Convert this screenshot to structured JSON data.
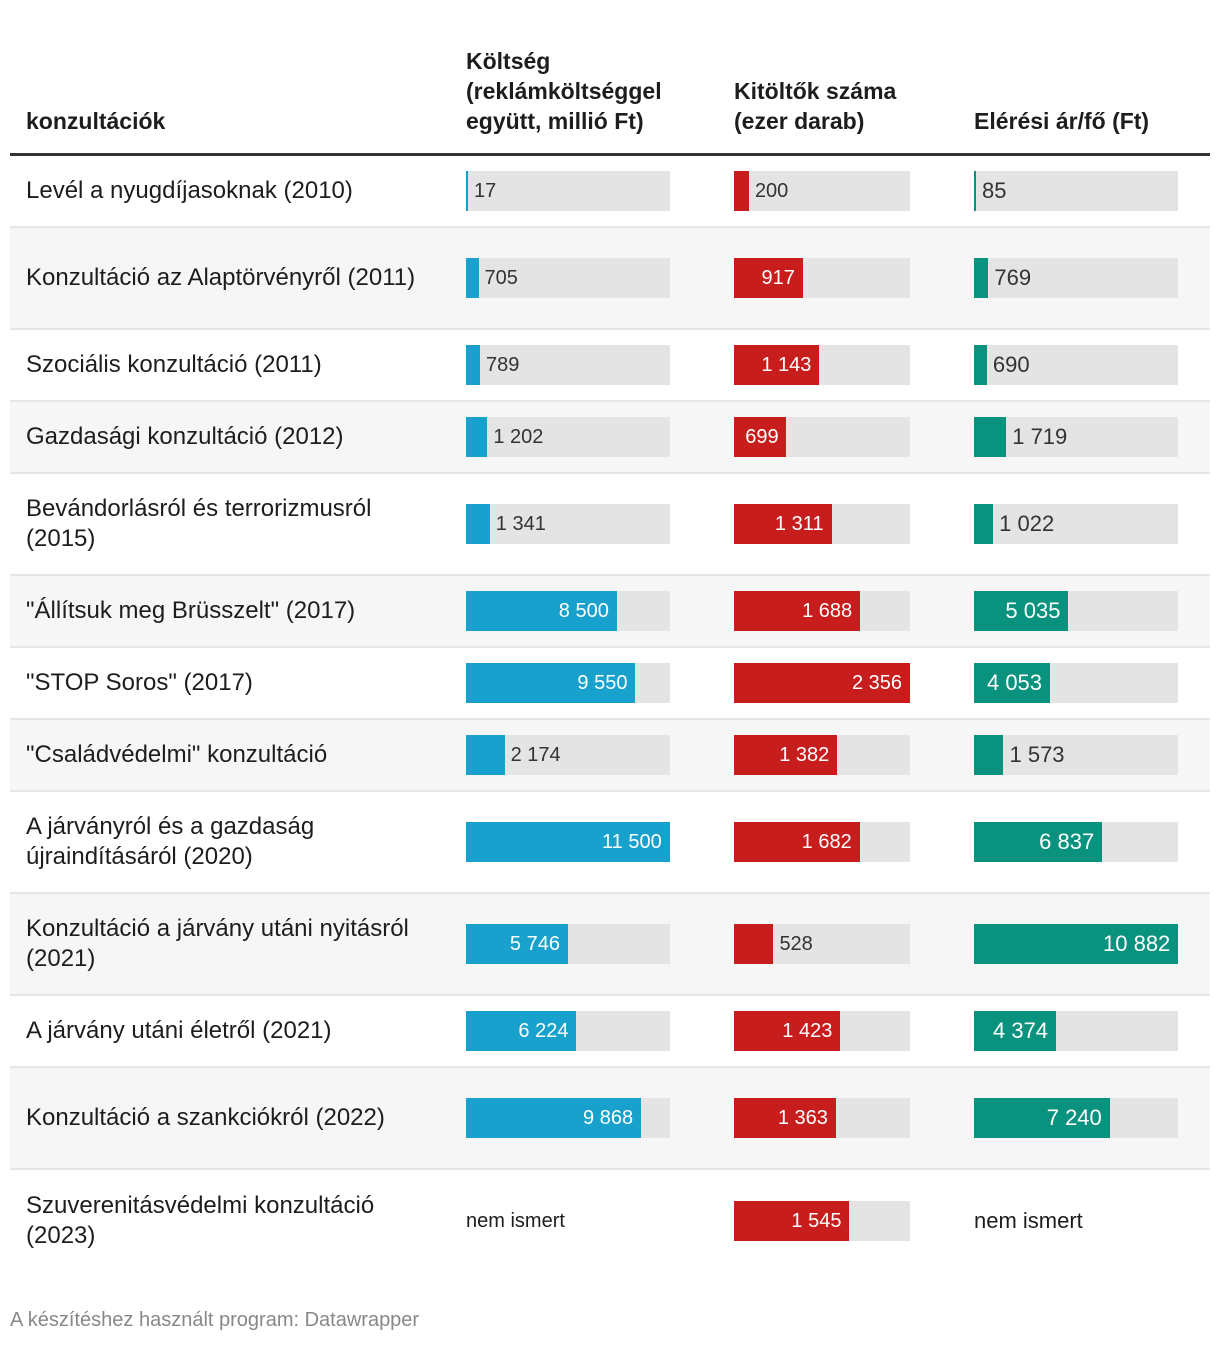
{
  "headers": {
    "name": "konzultációk",
    "cost": "Költség (reklámköltséggel együtt, millió Ft)",
    "respondents": "Kitöltők száma (ezer darab)",
    "price_per_person": "Elérési ár/fő (Ft)"
  },
  "footer": "A készítéshez használt program: Datawrapper",
  "colors": {
    "cost": "#18a1cd",
    "respondents": "#c71e1d",
    "price_per_person": "#09937e",
    "track": "#e4e4e4"
  },
  "chart_data": {
    "type": "table",
    "columns": [
      "konzultációk",
      "Költség (reklámköltséggel együtt, millió Ft)",
      "Kitöltők száma (ezer darab)",
      "Elérési ár/fő (Ft)"
    ],
    "scales": {
      "cost_max": 11500,
      "respondents_max": 2356,
      "price_max": 10882
    },
    "rows": [
      {
        "name": "Levél a nyugdíjasoknak (2010)",
        "cost": 17,
        "cost_label": "17",
        "respondents": 200,
        "respondents_label": "200",
        "price": 85,
        "price_label": "85"
      },
      {
        "name": "Konzultáció az Alaptörvényről (2011)",
        "cost": 705,
        "cost_label": "705",
        "respondents": 917,
        "respondents_label": "917",
        "price": 769,
        "price_label": "769"
      },
      {
        "name": "Szociális konzultáció (2011)",
        "cost": 789,
        "cost_label": "789",
        "respondents": 1143,
        "respondents_label": "1 143",
        "price": 690,
        "price_label": "690"
      },
      {
        "name": "Gazdasági konzultáció (2012)",
        "cost": 1202,
        "cost_label": "1 202",
        "respondents": 699,
        "respondents_label": "699",
        "price": 1719,
        "price_label": "1 719"
      },
      {
        "name": "Bevándorlásról és terrorizmusról (2015)",
        "cost": 1341,
        "cost_label": "1 341",
        "respondents": 1311,
        "respondents_label": "1 311",
        "price": 1022,
        "price_label": "1 022"
      },
      {
        "name": "\"Állítsuk meg Brüsszelt\" (2017)",
        "cost": 8500,
        "cost_label": "8 500",
        "respondents": 1688,
        "respondents_label": "1 688",
        "price": 5035,
        "price_label": "5 035"
      },
      {
        "name": "\"STOP Soros\" (2017)",
        "cost": 9550,
        "cost_label": "9 550",
        "respondents": 2356,
        "respondents_label": "2 356",
        "price": 4053,
        "price_label": "4 053"
      },
      {
        "name": "\"Családvédelmi\" konzultáció",
        "cost": 2174,
        "cost_label": "2 174",
        "respondents": 1382,
        "respondents_label": "1 382",
        "price": 1573,
        "price_label": "1 573"
      },
      {
        "name": "A járványról és a gazdaság újraindításáról (2020)",
        "cost": 11500,
        "cost_label": "11 500",
        "respondents": 1682,
        "respondents_label": "1 682",
        "price": 6837,
        "price_label": "6 837"
      },
      {
        "name": "Konzultáció a járvány utáni nyitásról (2021)",
        "cost": 5746,
        "cost_label": "5 746",
        "respondents": 528,
        "respondents_label": "528",
        "price": 10882,
        "price_label": "10 882"
      },
      {
        "name": "A járvány utáni életről (2021)",
        "cost": 6224,
        "cost_label": "6 224",
        "respondents": 1423,
        "respondents_label": "1 423",
        "price": 4374,
        "price_label": "4 374"
      },
      {
        "name": "Konzultáció a szankciókról (2022)",
        "cost": 9868,
        "cost_label": "9 868",
        "respondents": 1363,
        "respondents_label": "1 363",
        "price": 7240,
        "price_label": "7 240"
      },
      {
        "name": "Szuverenitásvédelmi konzultáció (2023)",
        "cost": null,
        "cost_label": "nem ismert",
        "respondents": 1545,
        "respondents_label": "1 545",
        "price": null,
        "price_label": "nem ismert"
      }
    ]
  }
}
